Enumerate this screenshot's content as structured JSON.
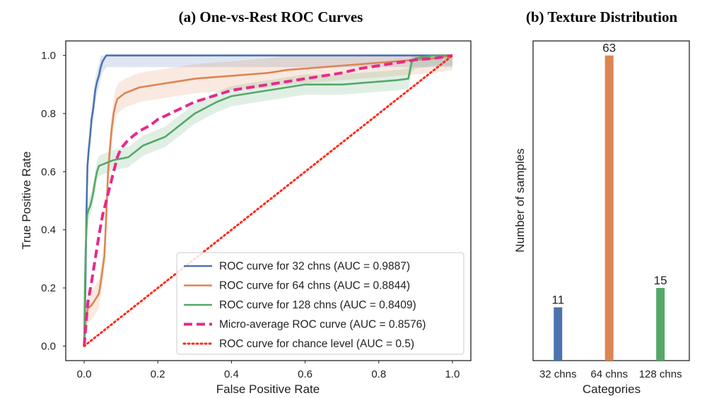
{
  "chart_data": [
    {
      "type": "line",
      "title": "(a) One-vs-Rest ROC Curves",
      "xlabel": "False Positive Rate",
      "ylabel": "True Positive Rate",
      "xlim": [
        -0.05,
        1.05
      ],
      "ylim": [
        -0.05,
        1.05
      ],
      "xticks": [
        0.0,
        0.2,
        0.4,
        0.6,
        0.8,
        1.0
      ],
      "xtick_labels": [
        "0.0",
        "0.2",
        "0.4",
        "0.6",
        "0.8",
        "1.0"
      ],
      "yticks": [
        0.0,
        0.2,
        0.4,
        0.6,
        0.8,
        1.0
      ],
      "ytick_labels": [
        "0.0",
        "0.2",
        "0.4",
        "0.6",
        "0.8",
        "1.0"
      ],
      "grid": false,
      "legend_position": "bottom-right",
      "series": [
        {
          "name": "ROC curve for 32 chns (AUC = 0.9887)",
          "color": "#4C72B0",
          "style": "solid",
          "x": [
            0,
            0.003,
            0.006,
            0.009,
            0.012,
            0.016,
            0.02,
            0.025,
            0.03,
            0.035,
            0.04,
            0.045,
            0.05,
            0.055,
            0.06,
            0.07,
            0.1,
            0.3,
            0.6,
            0.9,
            1.0
          ],
          "y": [
            0,
            0.17,
            0.45,
            0.62,
            0.67,
            0.72,
            0.78,
            0.82,
            0.88,
            0.91,
            0.93,
            0.96,
            0.98,
            0.99,
            1.0,
            1.0,
            1.0,
            1.0,
            1.0,
            1.0,
            1.0
          ]
        },
        {
          "name": "ROC curve for 64 chns (AUC = 0.8844)",
          "color": "#DD8452",
          "style": "solid",
          "x": [
            0,
            0.005,
            0.01,
            0.02,
            0.03,
            0.04,
            0.045,
            0.055,
            0.06,
            0.065,
            0.07,
            0.075,
            0.08,
            0.085,
            0.09,
            0.1,
            0.11,
            0.13,
            0.15,
            0.2,
            0.25,
            0.3,
            0.35,
            0.4,
            0.45,
            0.5,
            0.55,
            0.6,
            0.65,
            0.7,
            0.75,
            0.8,
            0.85,
            0.9,
            0.95,
            1.0
          ],
          "y": [
            0,
            0.1,
            0.13,
            0.14,
            0.16,
            0.18,
            0.22,
            0.31,
            0.45,
            0.6,
            0.68,
            0.75,
            0.8,
            0.83,
            0.85,
            0.86,
            0.87,
            0.88,
            0.89,
            0.9,
            0.91,
            0.92,
            0.925,
            0.93,
            0.935,
            0.94,
            0.95,
            0.955,
            0.96,
            0.965,
            0.97,
            0.975,
            0.98,
            0.985,
            0.99,
            1.0
          ]
        },
        {
          "name": "ROC curve for 128 chns (AUC = 0.8409)",
          "color": "#55A868",
          "style": "solid",
          "x": [
            0,
            0.002,
            0.004,
            0.008,
            0.012,
            0.016,
            0.02,
            0.025,
            0.03,
            0.035,
            0.04,
            0.06,
            0.08,
            0.12,
            0.14,
            0.16,
            0.18,
            0.2,
            0.22,
            0.24,
            0.26,
            0.28,
            0.3,
            0.33,
            0.36,
            0.4,
            0.45,
            0.5,
            0.55,
            0.6,
            0.65,
            0.7,
            0.75,
            0.8,
            0.85,
            0.88,
            0.89,
            0.9,
            0.95,
            1.0
          ],
          "y": [
            0,
            0.2,
            0.33,
            0.45,
            0.47,
            0.48,
            0.5,
            0.53,
            0.57,
            0.6,
            0.62,
            0.63,
            0.64,
            0.65,
            0.67,
            0.69,
            0.7,
            0.71,
            0.72,
            0.74,
            0.76,
            0.78,
            0.8,
            0.82,
            0.84,
            0.86,
            0.87,
            0.88,
            0.89,
            0.9,
            0.9,
            0.9,
            0.905,
            0.91,
            0.915,
            0.92,
            0.98,
            0.99,
            1.0,
            1.0
          ]
        },
        {
          "name": "Micro-average ROC curve (AUC = 0.8576)",
          "color": "#E7298A",
          "style": "dashed",
          "x": [
            0,
            0.01,
            0.02,
            0.03,
            0.04,
            0.05,
            0.06,
            0.07,
            0.08,
            0.09,
            0.1,
            0.12,
            0.15,
            0.18,
            0.2,
            0.25,
            0.3,
            0.35,
            0.4,
            0.45,
            0.5,
            0.55,
            0.6,
            0.65,
            0.7,
            0.75,
            0.8,
            0.85,
            0.9,
            0.95,
            1.0
          ],
          "y": [
            0,
            0.15,
            0.22,
            0.3,
            0.38,
            0.45,
            0.5,
            0.55,
            0.6,
            0.65,
            0.68,
            0.71,
            0.74,
            0.76,
            0.78,
            0.81,
            0.84,
            0.86,
            0.88,
            0.89,
            0.9,
            0.91,
            0.92,
            0.93,
            0.94,
            0.955,
            0.965,
            0.975,
            0.985,
            0.99,
            1.0
          ]
        },
        {
          "name": "ROC curve for chance level (AUC = 0.5)",
          "color": "#FF2A1A",
          "style": "dotted",
          "x": [
            0,
            1
          ],
          "y": [
            0,
            1
          ]
        }
      ]
    },
    {
      "type": "bar",
      "title": "(b) Texture Distribution",
      "xlabel": "Categories",
      "ylabel": "Number of samples",
      "categories": [
        "32 chns",
        "64 chns",
        "128 chns"
      ],
      "values": [
        11,
        63,
        15
      ],
      "value_labels": [
        "11",
        "63",
        "15"
      ],
      "colors": [
        "#4C72B0",
        "#DD8452",
        "#55A868"
      ],
      "ylim": [
        0,
        66
      ],
      "grid": false
    }
  ]
}
